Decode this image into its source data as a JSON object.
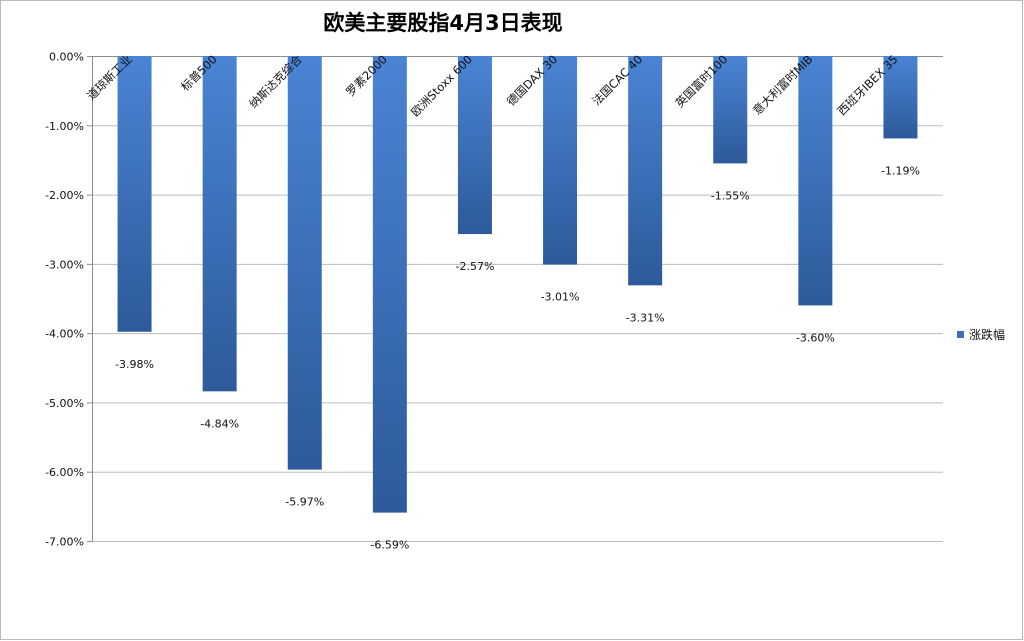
{
  "chart_data": {
    "type": "bar",
    "title": "欧美主要股指4月3日表现",
    "categories": [
      "道琼斯工业",
      "标普500",
      "纳斯达克综合",
      "罗素2000",
      "欧洲Stoxx 600",
      "德国DAX 30",
      "法国CAC 40",
      "英国富时100",
      "意大利富时MIB",
      "西班牙IBEX 35"
    ],
    "series": [
      {
        "name": "涨跌幅",
        "values": [
          -3.98,
          -4.84,
          -5.97,
          -6.59,
          -2.57,
          -3.01,
          -3.31,
          -1.55,
          -3.6,
          -1.19
        ],
        "labels": [
          "-3.98%",
          "-4.84%",
          "-5.97%",
          "-6.59%",
          "-2.57%",
          "-3.01%",
          "-3.31%",
          "-1.55%",
          "-3.60%",
          "-1.19%"
        ]
      }
    ],
    "ylim": [
      -7,
      0
    ],
    "yticks": [
      0,
      -1,
      -2,
      -3,
      -4,
      -5,
      -6,
      -7
    ],
    "ytick_labels": [
      "0.00%",
      "-1.00%",
      "-2.00%",
      "-3.00%",
      "-4.00%",
      "-5.00%",
      "-6.00%",
      "-7.00%"
    ],
    "grid": true,
    "legend_position": "right",
    "colors": {
      "bar_top": "#4a84d4",
      "bar_bottom": "#2d5a9a",
      "legend_swatch": "#3c6fbb"
    }
  }
}
